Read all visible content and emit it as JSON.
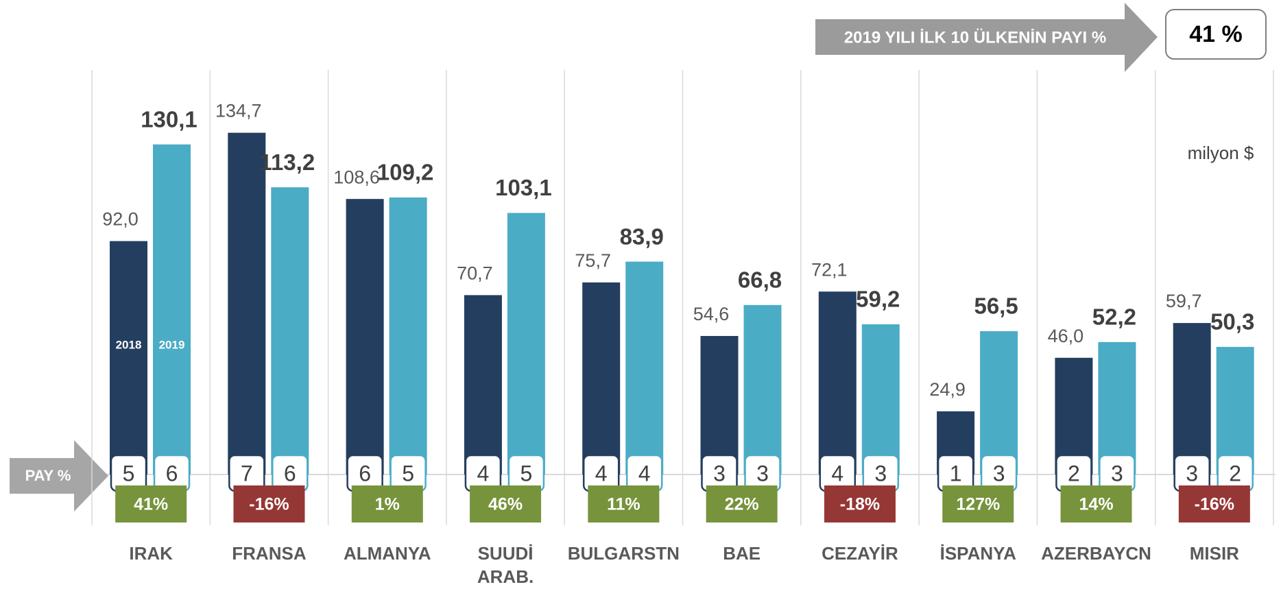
{
  "chart_data": {
    "type": "bar",
    "headline": "2019 YILI İLK 10 ÜLKENİN PAYI %",
    "headline_value": {
      "value": 41,
      "label": "41 %"
    },
    "unit_note": "milyon $",
    "share_label": "PAY %",
    "categories": [
      "IRAK",
      "FRANSA",
      "ALMANYA",
      "SUUDİ ARAB.",
      "BULGARSTN",
      "BAE",
      "CEZAYİR",
      "İSPANYA",
      "AZERBAYCN",
      "MISIR"
    ],
    "ylim": [
      0,
      160
    ],
    "series": [
      {
        "name": "2018",
        "color": "#243e5f",
        "values": [
          92.0,
          134.7,
          108.6,
          70.7,
          75.7,
          54.6,
          72.1,
          24.9,
          46.0,
          59.7
        ],
        "value_labels": [
          "92,0",
          "134,7",
          "108,6",
          "70,7",
          "75,7",
          "54,6",
          "72,1",
          "24,9",
          "46,0",
          "59,7"
        ],
        "shares": [
          5,
          7,
          6,
          4,
          4,
          3,
          4,
          1,
          2,
          3
        ]
      },
      {
        "name": "2019",
        "color": "#4bacc6",
        "values": [
          130.1,
          113.2,
          109.2,
          103.1,
          83.9,
          66.8,
          59.2,
          56.5,
          52.2,
          50.3
        ],
        "value_labels": [
          "130,1",
          "113,2",
          "109,2",
          "103,1",
          "83,9",
          "66,8",
          "59,2",
          "56,5",
          "52,2",
          "50,3"
        ],
        "shares": [
          6,
          6,
          5,
          5,
          4,
          3,
          3,
          3,
          3,
          2
        ]
      }
    ],
    "change": [
      41,
      -16,
      1,
      46,
      11,
      22,
      -18,
      127,
      14,
      -16
    ],
    "change_labels": [
      "41%",
      "-16%",
      "1%",
      "46%",
      "11%",
      "22%",
      "-18%",
      "127%",
      "14%",
      "-16%"
    ],
    "positive_color": "#77933c",
    "negative_color": "#953735"
  }
}
